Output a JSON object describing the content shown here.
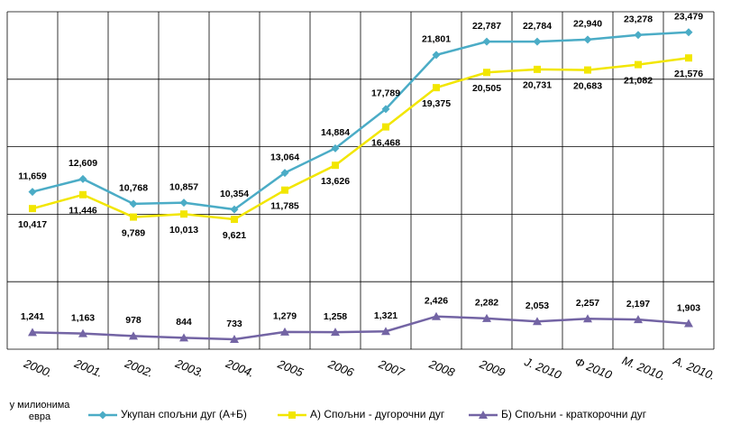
{
  "chart_data": {
    "type": "line",
    "categories": [
      "2000.",
      "2001.",
      "2002.",
      "2003.",
      "2004.",
      "2005",
      "2006",
      "2007",
      "2008",
      "2009",
      "Ј. 2010",
      "Ф 2010",
      "М. 2010.",
      "А. 2010."
    ],
    "ylim": [
      0,
      25000
    ],
    "yticks": [
      0,
      5000,
      10000,
      15000,
      20000,
      25000
    ],
    "grid": true,
    "unit_label": [
      "у милионима",
      "евра"
    ],
    "legend": "bottom",
    "series": [
      {
        "name": "Укупан спољни дуг (А+Б)",
        "color": "#4bacc6",
        "marker": "diamond",
        "label_position": "above",
        "values": [
          11659,
          12609,
          10768,
          10857,
          10354,
          13064,
          14884,
          17789,
          21801,
          22787,
          22784,
          22940,
          23278,
          23479
        ],
        "value_labels": [
          "11,659",
          "12,609",
          "10,768",
          "10,857",
          "10,354",
          "13,064",
          "14,884",
          "17,789",
          "21,801",
          "22,787",
          "22,784",
          "22,940",
          "23,278",
          "23,479"
        ]
      },
      {
        "name": "А) Спољни - дугорочни дуг",
        "color": "#f2e600",
        "marker": "square",
        "label_position": "below",
        "values": [
          10417,
          11446,
          9789,
          10013,
          9621,
          11785,
          13626,
          16468,
          19375,
          20505,
          20731,
          20683,
          21082,
          21576
        ],
        "value_labels": [
          "10,417",
          "11,446",
          "9,789",
          "10,013",
          "9,621",
          "11,785",
          "13,626",
          "16,468",
          "19,375",
          "20,505",
          "20,731",
          "20,683",
          "21,082",
          "21,576"
        ]
      },
      {
        "name": "Б) Спољни - краткорочни дуг",
        "color": "#7364a4",
        "marker": "triangle",
        "label_position": "above",
        "values": [
          1241,
          1163,
          978,
          844,
          733,
          1279,
          1258,
          1321,
          2426,
          2282,
          2053,
          2257,
          2197,
          1903
        ],
        "value_labels": [
          "1,241",
          "1,163",
          "978",
          "844",
          "733",
          "1,279",
          "1,258",
          "1,321",
          "2,426",
          "2,282",
          "2,053",
          "2,257",
          "2,197",
          "1,903"
        ]
      }
    ]
  }
}
